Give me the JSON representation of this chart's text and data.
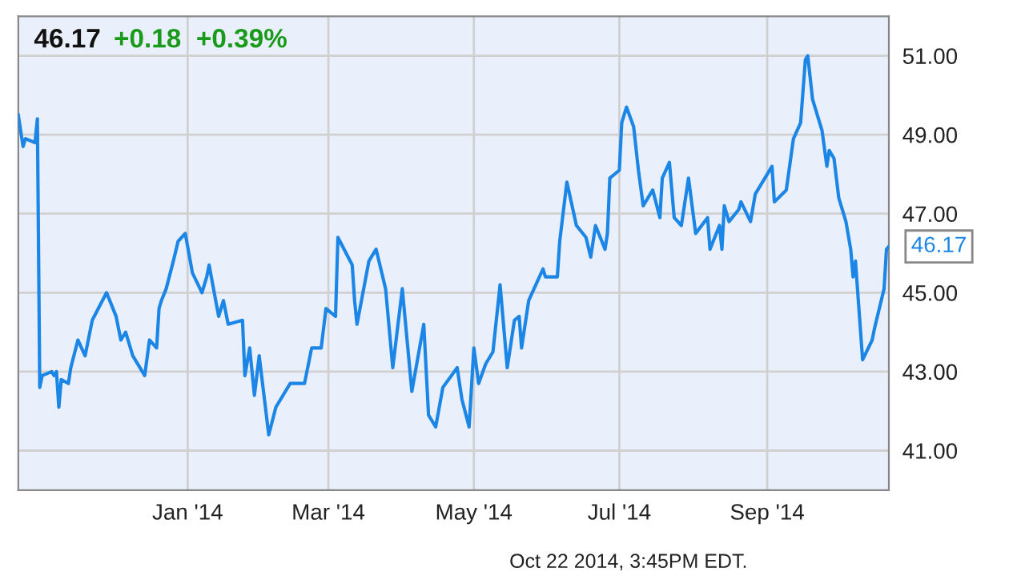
{
  "chart_data": {
    "type": "line",
    "title": "46.17",
    "subtitle": "+0.18  +0.39%",
    "annotations": [
      {
        "text": "46.17",
        "x": "2014-10-22",
        "y": 46.17
      },
      "Oct 22 2014, 3:45PM EDT."
    ],
    "x": [
      "2013-10-22",
      "2013-10-24",
      "2013-10-25",
      "2013-10-29",
      "2013-10-30",
      "2013-10-31",
      "2013-11-01",
      "2013-11-05",
      "2013-11-06",
      "2013-11-07",
      "2013-11-08",
      "2013-11-09",
      "2013-11-12",
      "2013-11-13",
      "2013-11-16",
      "2013-11-19",
      "2013-11-22",
      "2013-11-28",
      "2013-12-02",
      "2013-12-04",
      "2013-12-06",
      "2013-12-09",
      "2013-12-14",
      "2013-12-16",
      "2013-12-19",
      "2013-12-20",
      "2013-12-21",
      "2013-12-23",
      "2013-12-26",
      "2013-12-28",
      "2013-12-31",
      "2014-01-03",
      "2014-01-07",
      "2014-01-09",
      "2014-01-10",
      "2014-01-14",
      "2014-01-16",
      "2014-01-18",
      "2014-01-24",
      "2014-01-25",
      "2014-01-27",
      "2014-01-29",
      "2014-01-31",
      "2014-02-04",
      "2014-02-07",
      "2014-02-13",
      "2014-02-19",
      "2014-02-22",
      "2014-02-26",
      "2014-02-28",
      "2014-03-04",
      "2014-03-05",
      "2014-03-11",
      "2014-03-12",
      "2014-03-13",
      "2014-03-18",
      "2014-03-21",
      "2014-03-25",
      "2014-03-28",
      "2014-04-01",
      "2014-04-05",
      "2014-04-10",
      "2014-04-12",
      "2014-04-15",
      "2014-04-18",
      "2014-04-24",
      "2014-04-26",
      "2014-04-29",
      "2014-05-01",
      "2014-05-03",
      "2014-05-06",
      "2014-05-09",
      "2014-05-12",
      "2014-05-15",
      "2014-05-18",
      "2014-05-20",
      "2014-05-21",
      "2014-05-24",
      "2014-05-27",
      "2014-05-30",
      "2014-05-31",
      "2014-06-05",
      "2014-06-06",
      "2014-06-09",
      "2014-06-13",
      "2014-06-17",
      "2014-06-19",
      "2014-06-21",
      "2014-06-25",
      "2014-06-26",
      "2014-06-27",
      "2014-07-01",
      "2014-07-02",
      "2014-07-04",
      "2014-07-07",
      "2014-07-09",
      "2014-07-11",
      "2014-07-15",
      "2014-07-18",
      "2014-07-19",
      "2014-07-22",
      "2014-07-24",
      "2014-07-27",
      "2014-07-30",
      "2014-08-02",
      "2014-08-07",
      "2014-08-08",
      "2014-08-12",
      "2014-08-13",
      "2014-08-14",
      "2014-08-16",
      "2014-08-20",
      "2014-08-21",
      "2014-08-25",
      "2014-08-27",
      "2014-08-30",
      "2014-09-03",
      "2014-09-04",
      "2014-09-09",
      "2014-09-12",
      "2014-09-15",
      "2014-09-17",
      "2014-09-18",
      "2014-09-20",
      "2014-09-24",
      "2014-09-26",
      "2014-09-27",
      "2014-09-29",
      "2014-10-01",
      "2014-10-04",
      "2014-10-06",
      "2014-10-07",
      "2014-10-08",
      "2014-10-11",
      "2014-10-15",
      "2014-10-16",
      "2014-10-18",
      "2014-10-20",
      "2014-10-21",
      "2014-10-22"
    ],
    "series": [
      {
        "color": "#1c86e6",
        "values": [
          49.5,
          48.7,
          48.9,
          48.8,
          49.4,
          42.6,
          42.9,
          43.0,
          42.9,
          43.0,
          42.1,
          42.8,
          42.7,
          43.1,
          43.8,
          43.4,
          44.3,
          45.0,
          44.4,
          43.8,
          44.0,
          43.4,
          42.9,
          43.8,
          43.6,
          44.6,
          44.8,
          45.1,
          45.8,
          46.3,
          46.5,
          45.5,
          45.0,
          45.4,
          45.7,
          44.4,
          44.8,
          44.2,
          44.3,
          42.9,
          43.6,
          42.4,
          43.4,
          41.4,
          42.1,
          42.7,
          42.7,
          43.6,
          43.6,
          44.6,
          44.4,
          46.4,
          45.7,
          44.8,
          44.2,
          45.8,
          46.1,
          45.1,
          43.1,
          45.1,
          42.5,
          44.2,
          41.9,
          41.6,
          42.6,
          43.1,
          42.3,
          41.6,
          43.6,
          42.7,
          43.2,
          43.5,
          45.2,
          43.1,
          44.3,
          44.4,
          43.6,
          44.8,
          45.2,
          45.6,
          45.4,
          45.4,
          46.3,
          47.8,
          46.7,
          46.4,
          45.9,
          46.7,
          46.1,
          46.5,
          47.9,
          48.1,
          49.3,
          49.7,
          49.2,
          48.1,
          47.2,
          47.6,
          46.9,
          47.9,
          48.3,
          46.9,
          46.7,
          47.9,
          46.5,
          46.9,
          46.1,
          46.7,
          46.1,
          47.2,
          46.8,
          47.1,
          47.3,
          46.8,
          47.5,
          47.8,
          48.2,
          47.3,
          47.6,
          48.9,
          49.3,
          50.9,
          51.0,
          49.9,
          49.1,
          48.2,
          48.6,
          48.4,
          47.4,
          46.8,
          46.1,
          45.4,
          45.8,
          43.3,
          43.8,
          44.1,
          44.6,
          45.1,
          46.1,
          46.17
        ]
      }
    ],
    "xlim": [
      "2013-10-22",
      "2014-10-22"
    ],
    "xticks": [
      {
        "value": "2014-01-01",
        "label": "Jan '14"
      },
      {
        "value": "2014-03-01",
        "label": "Mar '14"
      },
      {
        "value": "2014-05-01",
        "label": "May '14"
      },
      {
        "value": "2014-07-01",
        "label": "Jul '14"
      },
      {
        "value": "2014-09-01",
        "label": "Sep '14"
      }
    ],
    "ylim": [
      40,
      52
    ],
    "yticks": [
      {
        "value": 41,
        "label": "41.00"
      },
      {
        "value": 43,
        "label": "43.00"
      },
      {
        "value": 45,
        "label": "45.00"
      },
      {
        "value": 47,
        "label": "47.00"
      },
      {
        "value": 49,
        "label": "49.00"
      },
      {
        "value": 51,
        "label": "51.00"
      }
    ],
    "grid": true,
    "marker": "none",
    "line_style": "solid"
  }
}
